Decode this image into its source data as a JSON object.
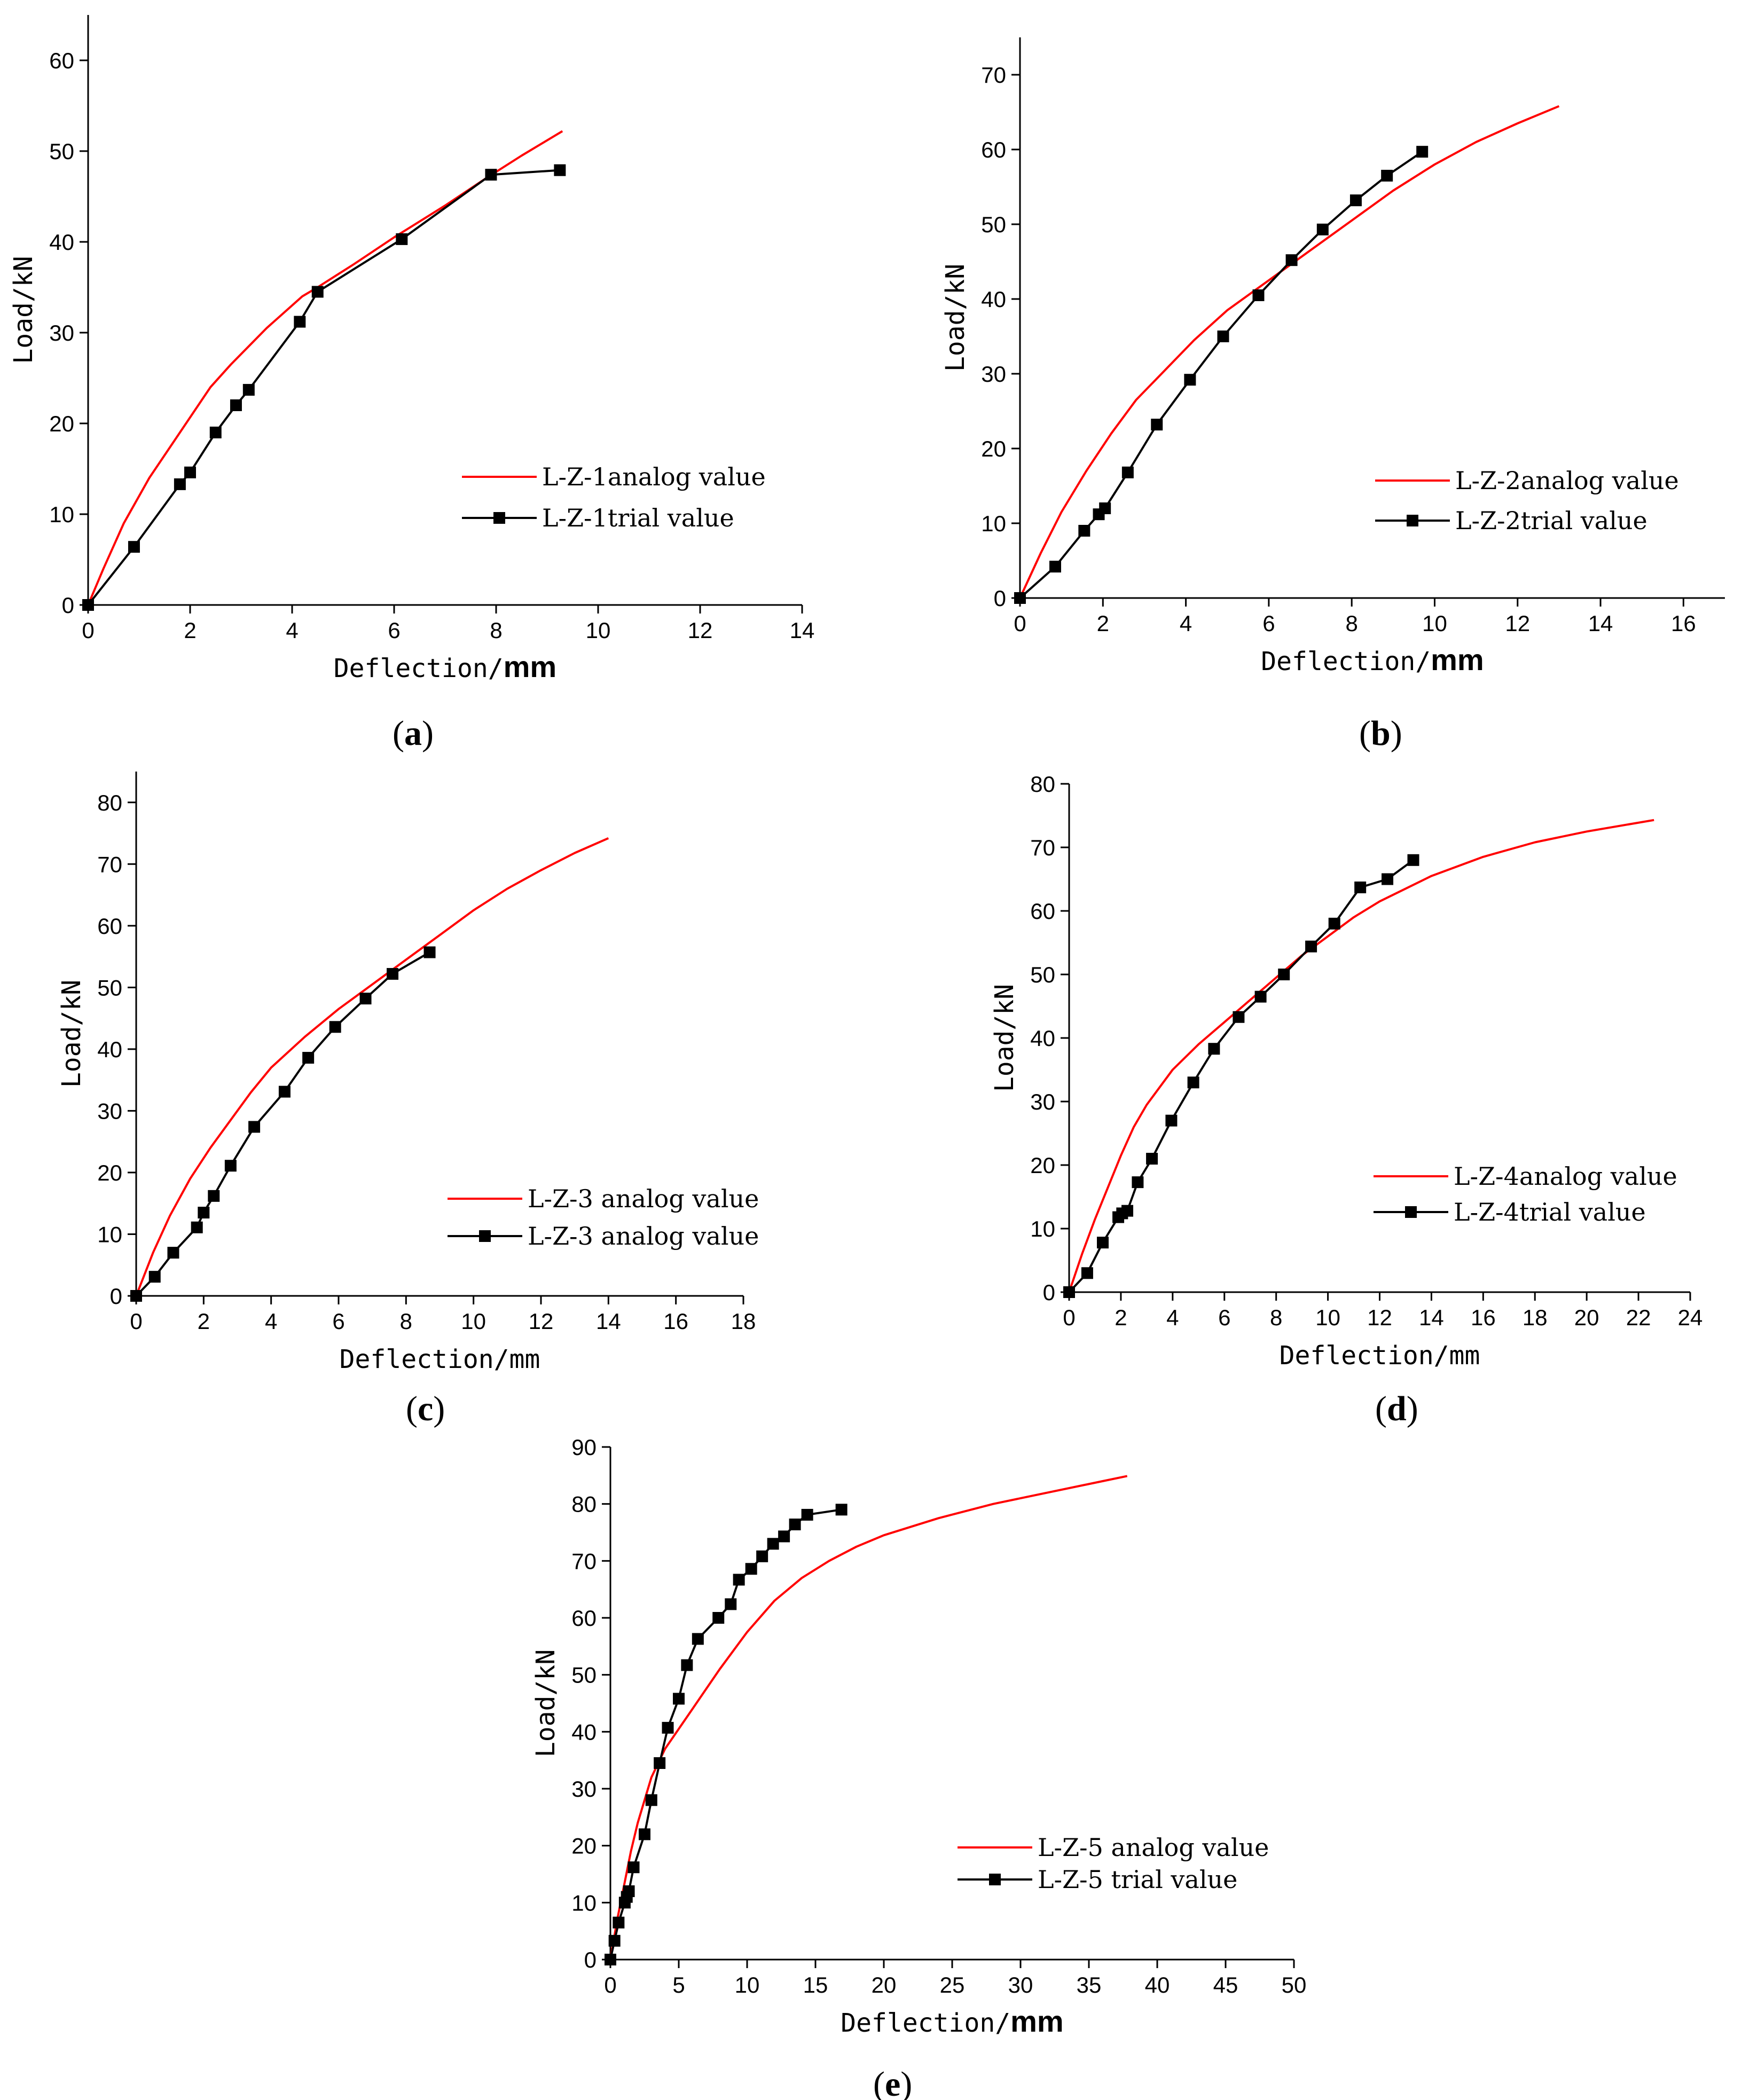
{
  "chart_data": [
    {
      "type": "line",
      "panel_label": "a",
      "xlabel": "Deflection/",
      "xlabel_unit": "mm",
      "ylabel": "Load/kN",
      "xlim": [
        0,
        14
      ],
      "ylim": [
        0,
        65
      ],
      "xticks": [
        0,
        2,
        4,
        6,
        8,
        10,
        12,
        14
      ],
      "yticks": [
        0,
        10,
        20,
        30,
        40,
        50,
        60
      ],
      "legend_position": "lower-right",
      "series": [
        {
          "name": "L-Z-1analog value",
          "color": "#ff0000",
          "marker": "none",
          "x": [
            0,
            0.3,
            0.7,
            1.2,
            1.8,
            2.4,
            2.8,
            3.5,
            4.2,
            4.5,
            5.2,
            6.0,
            7.0,
            7.8,
            8.5,
            9.3
          ],
          "y": [
            0,
            4,
            9,
            14,
            19,
            24,
            26.5,
            30.5,
            34,
            35,
            37.5,
            40.5,
            44,
            47,
            49.5,
            52.2
          ]
        },
        {
          "name": "L-Z-1trial value",
          "color": "#000000",
          "marker": "square",
          "x": [
            0,
            0.9,
            1.8,
            2.0,
            2.5,
            2.9,
            3.15,
            4.15,
            4.5,
            6.15,
            7.9,
            9.25
          ],
          "y": [
            0,
            6.4,
            13.3,
            14.6,
            19.0,
            22.0,
            23.7,
            31.2,
            34.5,
            40.3,
            47.4,
            47.9
          ]
        }
      ]
    },
    {
      "type": "line",
      "panel_label": "b",
      "xlabel": "Deflection/",
      "xlabel_unit": "mm",
      "ylabel": "Load/kN",
      "xlim": [
        0,
        17
      ],
      "ylim": [
        0,
        75
      ],
      "xticks": [
        0,
        2,
        4,
        6,
        8,
        10,
        12,
        14,
        16
      ],
      "yticks": [
        0,
        10,
        20,
        30,
        40,
        50,
        60,
        70
      ],
      "legend_position": "lower-right",
      "series": [
        {
          "name": "L-Z-2analog value",
          "color": "#ff0000",
          "marker": "none",
          "x": [
            0,
            0.5,
            1.0,
            1.6,
            2.2,
            2.8,
            3.5,
            4.2,
            5.0,
            6.0,
            7.0,
            8.0,
            9.0,
            10.0,
            11.0,
            12.0,
            13.0
          ],
          "y": [
            0,
            6,
            11.5,
            17,
            22,
            26.5,
            30.5,
            34.5,
            38.5,
            42.5,
            46.5,
            50.5,
            54.5,
            58,
            61,
            63.5,
            65.8
          ]
        },
        {
          "name": "L-Z-2trial value",
          "color": "#000000",
          "marker": "square",
          "x": [
            0,
            0.85,
            1.55,
            1.9,
            2.05,
            2.6,
            3.3,
            4.1,
            4.9,
            5.75,
            6.55,
            7.3,
            8.1,
            8.85,
            9.7
          ],
          "y": [
            0,
            4.2,
            9.0,
            11.2,
            12.0,
            16.8,
            23.2,
            29.2,
            35.0,
            40.5,
            45.2,
            49.3,
            53.2,
            56.5,
            59.7
          ]
        }
      ]
    },
    {
      "type": "line",
      "panel_label": "c",
      "xlabel": "Deflection/mm",
      "ylabel": "Load/kN",
      "xlim": [
        0,
        18
      ],
      "ylim": [
        0,
        85
      ],
      "xticks": [
        0,
        2,
        4,
        6,
        8,
        10,
        12,
        14,
        16,
        18
      ],
      "yticks": [
        0,
        10,
        20,
        30,
        40,
        50,
        60,
        70,
        80
      ],
      "legend_position": "lower-right",
      "series": [
        {
          "name": "L-Z-3 analog value",
          "color": "#ff0000",
          "marker": "none",
          "x": [
            0,
            0.5,
            1.0,
            1.6,
            2.2,
            2.8,
            3.4,
            4.0,
            5.0,
            6.0,
            7.0,
            8.0,
            9.0,
            10.0,
            11.0,
            12.0,
            13.0,
            14.0
          ],
          "y": [
            0,
            7,
            13,
            19,
            24,
            28.5,
            33,
            37,
            42,
            46.5,
            50.5,
            54.5,
            58.5,
            62.5,
            66,
            69,
            71.8,
            74.2
          ]
        },
        {
          "name": "L-Z-3 analog value",
          "color": "#000000",
          "marker": "square",
          "x": [
            0,
            0.55,
            1.1,
            1.8,
            2.0,
            2.3,
            2.8,
            3.5,
            4.4,
            5.1,
            5.9,
            6.8,
            7.6,
            8.7
          ],
          "y": [
            0,
            3.1,
            7.0,
            11.1,
            13.5,
            16.2,
            21.1,
            27.4,
            33.1,
            38.6,
            43.6,
            48.2,
            52.2,
            55.7
          ]
        }
      ]
    },
    {
      "type": "line",
      "panel_label": "d",
      "xlabel": "Deflection/mm",
      "ylabel": "Load/kN",
      "xlim": [
        0,
        24
      ],
      "ylim": [
        0,
        80
      ],
      "xticks": [
        0,
        2,
        4,
        6,
        8,
        10,
        12,
        14,
        16,
        18,
        20,
        22,
        24
      ],
      "yticks": [
        0,
        10,
        20,
        30,
        40,
        50,
        60,
        70,
        80
      ],
      "legend_position": "lower-right",
      "series": [
        {
          "name": "L-Z-4analog value",
          "color": "#ff0000",
          "marker": "none",
          "x": [
            0,
            0.5,
            1.0,
            1.5,
            2.0,
            2.5,
            3.0,
            4.0,
            5.0,
            6.0,
            7.0,
            8.0,
            9.0,
            10.0,
            11.0,
            12.0,
            14.0,
            16.0,
            18.0,
            20.0,
            22.6
          ],
          "y": [
            0,
            6,
            11.5,
            16.5,
            21.5,
            26,
            29.5,
            35,
            39,
            42.5,
            46,
            49.5,
            53,
            56,
            59,
            61.5,
            65.5,
            68.5,
            70.8,
            72.5,
            74.3
          ]
        },
        {
          "name": "L-Z-4trial value",
          "color": "#000000",
          "marker": "square",
          "x": [
            0,
            0.7,
            1.3,
            1.9,
            2.05,
            2.25,
            2.65,
            3.2,
            3.95,
            4.8,
            5.6,
            6.55,
            7.4,
            8.3,
            9.35,
            10.25,
            11.25,
            12.3,
            13.3
          ],
          "y": [
            0,
            3.0,
            7.8,
            11.8,
            12.4,
            12.8,
            17.3,
            21.0,
            27.0,
            33.0,
            38.3,
            43.3,
            46.5,
            50.0,
            54.4,
            58.0,
            63.7,
            65.0,
            68.0
          ]
        }
      ]
    },
    {
      "type": "line",
      "panel_label": "e",
      "xlabel": "Deflection/",
      "xlabel_unit": "mm",
      "ylabel": "Load/kN",
      "xlim": [
        0,
        50
      ],
      "ylim": [
        0,
        90
      ],
      "xticks": [
        0,
        5,
        10,
        15,
        20,
        25,
        30,
        35,
        40,
        45,
        50
      ],
      "yticks": [
        0,
        10,
        20,
        30,
        40,
        50,
        60,
        70,
        80,
        90
      ],
      "legend_position": "lower-right",
      "series": [
        {
          "name": "L-Z-5 analog value",
          "color": "#ff0000",
          "marker": "none",
          "x": [
            0,
            0.5,
            1.0,
            1.5,
            2.0,
            3.0,
            4.0,
            6.0,
            8.0,
            10.0,
            12.0,
            14.0,
            16.0,
            18.0,
            20.0,
            24.0,
            28.0,
            32.0,
            36.0,
            37.8
          ],
          "y": [
            0,
            7,
            13,
            19,
            24,
            32,
            37,
            44,
            51,
            57.5,
            63,
            67,
            70,
            72.5,
            74.5,
            77.5,
            80,
            82,
            84,
            84.9
          ]
        },
        {
          "name": "L-Z-5 trial value",
          "color": "#000000",
          "marker": "square",
          "x": [
            0,
            0.3,
            0.6,
            1.05,
            1.2,
            1.35,
            1.7,
            2.5,
            3.0,
            3.6,
            4.2,
            5.0,
            5.6,
            6.4,
            7.9,
            8.8,
            9.4,
            10.3,
            11.1,
            11.9,
            12.7,
            13.5,
            14.4,
            16.9
          ],
          "y": [
            0,
            3.3,
            6.5,
            10.0,
            11.0,
            12.0,
            16.2,
            22.0,
            28.0,
            34.5,
            40.7,
            45.8,
            51.7,
            56.3,
            60.0,
            62.4,
            66.7,
            68.6,
            70.8,
            73.0,
            74.3,
            76.4,
            78.1,
            79.0
          ]
        }
      ]
    }
  ]
}
